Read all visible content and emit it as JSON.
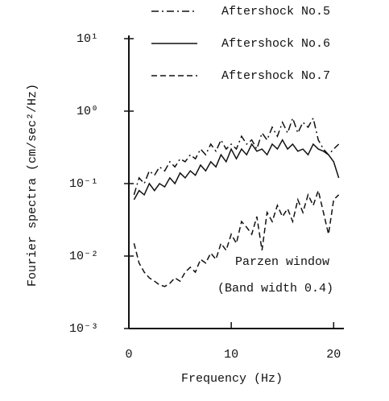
{
  "chart_data": {
    "type": "line",
    "xlabel": "Frequency (Hz)",
    "ylabel": "Fourier spectra (cm/sec²/Hz)",
    "annotations": [
      "Parzen window",
      "(Band width 0.4)"
    ],
    "x": [
      0.5,
      1,
      1.5,
      2,
      2.5,
      3,
      3.5,
      4,
      4.5,
      5,
      5.5,
      6,
      6.5,
      7,
      7.5,
      8,
      8.5,
      9,
      9.5,
      10,
      10.5,
      11,
      11.5,
      12,
      12.5,
      13,
      13.5,
      14,
      14.5,
      15,
      15.5,
      16,
      16.5,
      17,
      17.5,
      18,
      18.5,
      19,
      19.5,
      20,
      20.5
    ],
    "series": [
      {
        "name": "Aftershock No.5",
        "color": "#111111",
        "linestyle": "dashdot",
        "values": [
          0.07,
          0.12,
          0.1,
          0.15,
          0.13,
          0.17,
          0.15,
          0.2,
          0.17,
          0.22,
          0.2,
          0.25,
          0.22,
          0.3,
          0.25,
          0.35,
          0.28,
          0.4,
          0.3,
          0.35,
          0.3,
          0.45,
          0.35,
          0.4,
          0.3,
          0.5,
          0.4,
          0.6,
          0.45,
          0.7,
          0.5,
          0.8,
          0.5,
          0.7,
          0.6,
          0.8,
          0.4,
          0.3,
          0.25,
          0.3,
          0.35
        ]
      },
      {
        "name": "Aftershock No.6",
        "color": "#111111",
        "linestyle": "solid",
        "values": [
          0.06,
          0.08,
          0.07,
          0.1,
          0.08,
          0.1,
          0.09,
          0.12,
          0.1,
          0.14,
          0.12,
          0.15,
          0.13,
          0.18,
          0.15,
          0.2,
          0.17,
          0.25,
          0.2,
          0.3,
          0.22,
          0.3,
          0.25,
          0.35,
          0.28,
          0.3,
          0.25,
          0.35,
          0.3,
          0.4,
          0.3,
          0.35,
          0.28,
          0.3,
          0.25,
          0.35,
          0.3,
          0.28,
          0.25,
          0.2,
          0.12
        ]
      },
      {
        "name": "Aftershock No.7",
        "color": "#111111",
        "linestyle": "dashed",
        "values": [
          0.015,
          0.008,
          0.006,
          0.005,
          0.0045,
          0.004,
          0.0038,
          0.0042,
          0.005,
          0.0045,
          0.006,
          0.007,
          0.006,
          0.009,
          0.008,
          0.011,
          0.009,
          0.015,
          0.012,
          0.02,
          0.015,
          0.03,
          0.025,
          0.02,
          0.035,
          0.012,
          0.04,
          0.03,
          0.05,
          0.035,
          0.045,
          0.03,
          0.06,
          0.04,
          0.07,
          0.05,
          0.08,
          0.04,
          0.02,
          0.06,
          0.07
        ]
      }
    ],
    "xlim": [
      0,
      21
    ],
    "xticks": [
      0,
      10,
      20
    ],
    "ylim": [
      0.001,
      10
    ],
    "yscale": "log",
    "yticks": [
      {
        "value": 0.001,
        "label": "10⁻³"
      },
      {
        "value": 0.01,
        "label": "10⁻²"
      },
      {
        "value": 0.1,
        "label": "10⁻¹"
      },
      {
        "value": 1,
        "label": "10⁰"
      },
      {
        "value": 10,
        "label": "10¹"
      }
    ],
    "legend": "upper right",
    "grid": false
  }
}
